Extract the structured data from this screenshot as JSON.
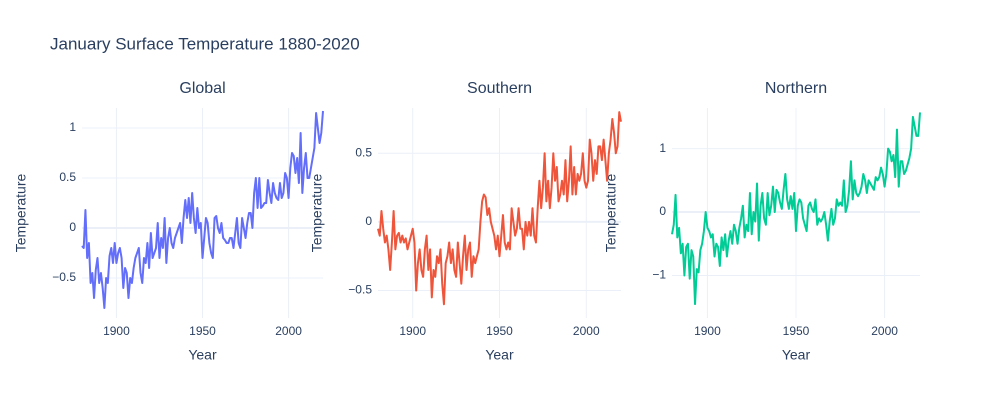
{
  "title": "January Surface Temperature 1880-2020",
  "chart_data": [
    {
      "type": "line",
      "title": "Global",
      "x_label": "Year",
      "y_label": "Temperature",
      "color": "#636efa",
      "x": [
        1880,
        1881,
        1882,
        1883,
        1884,
        1885,
        1886,
        1887,
        1888,
        1889,
        1890,
        1891,
        1892,
        1893,
        1894,
        1895,
        1896,
        1897,
        1898,
        1899,
        1900,
        1901,
        1902,
        1903,
        1904,
        1905,
        1906,
        1907,
        1908,
        1909,
        1910,
        1911,
        1912,
        1913,
        1914,
        1915,
        1916,
        1917,
        1918,
        1919,
        1920,
        1921,
        1922,
        1923,
        1924,
        1925,
        1926,
        1927,
        1928,
        1929,
        1930,
        1931,
        1932,
        1933,
        1934,
        1935,
        1936,
        1937,
        1938,
        1939,
        1940,
        1941,
        1942,
        1943,
        1944,
        1945,
        1946,
        1947,
        1948,
        1949,
        1950,
        1951,
        1952,
        1953,
        1954,
        1955,
        1956,
        1957,
        1958,
        1959,
        1960,
        1961,
        1962,
        1963,
        1964,
        1965,
        1966,
        1967,
        1968,
        1969,
        1970,
        1971,
        1972,
        1973,
        1974,
        1975,
        1976,
        1977,
        1978,
        1979,
        1980,
        1981,
        1982,
        1983,
        1984,
        1985,
        1986,
        1987,
        1988,
        1989,
        1990,
        1991,
        1992,
        1993,
        1994,
        1995,
        1996,
        1997,
        1998,
        1999,
        2000,
        2001,
        2002,
        2003,
        2004,
        2005,
        2006,
        2007,
        2008,
        2009,
        2010,
        2011,
        2012,
        2013,
        2014,
        2015,
        2016,
        2017,
        2018,
        2019,
        2020
      ],
      "values": [
        -0.18,
        -0.2,
        0.18,
        -0.3,
        -0.15,
        -0.55,
        -0.45,
        -0.7,
        -0.42,
        -0.3,
        -0.55,
        -0.45,
        -0.6,
        -0.8,
        -0.5,
        -0.55,
        -0.28,
        -0.2,
        -0.35,
        -0.15,
        -0.35,
        -0.25,
        -0.2,
        -0.3,
        -0.6,
        -0.4,
        -0.45,
        -0.7,
        -0.5,
        -0.55,
        -0.4,
        -0.3,
        -0.25,
        -0.2,
        -0.45,
        -0.55,
        -0.3,
        -0.35,
        -0.15,
        -0.4,
        -0.05,
        -0.3,
        -0.25,
        -0.2,
        0.05,
        -0.3,
        -0.1,
        -0.2,
        0.1,
        -0.35,
        -0.1,
        0.0,
        -0.15,
        -0.2,
        -0.1,
        -0.05,
        0.0,
        0.05,
        -0.15,
        0.1,
        0.28,
        0.1,
        0.3,
        0.05,
        0.35,
        0.1,
        -0.05,
        0.2,
        0.0,
        0.05,
        -0.3,
        -0.1,
        0.1,
        0.05,
        -0.15,
        -0.25,
        -0.3,
        0.1,
        0.12,
        0.0,
        -0.05,
        0.05,
        -0.1,
        -0.12,
        -0.15,
        -0.15,
        -0.1,
        -0.1,
        -0.2,
        -0.05,
        0.1,
        -0.15,
        -0.2,
        0.1,
        0.0,
        -0.1,
        0.05,
        0.15,
        0.15,
        0.0,
        0.35,
        0.5,
        0.2,
        0.5,
        0.2,
        0.22,
        0.25,
        0.25,
        0.48,
        0.35,
        0.25,
        0.45,
        0.35,
        0.3,
        0.28,
        0.45,
        0.3,
        0.35,
        0.55,
        0.5,
        0.3,
        0.6,
        0.75,
        0.72,
        0.55,
        0.7,
        0.45,
        0.95,
        0.35,
        0.6,
        0.75,
        0.5,
        0.5,
        0.6,
        0.7,
        0.8,
        1.15,
        1.0,
        0.85,
        0.95,
        1.17
      ],
      "xlim": [
        1880,
        2020
      ],
      "xticks": [
        1900,
        1950,
        2000
      ],
      "ylim": [
        -0.9,
        1.2
      ],
      "yticks": [
        {
          "value": -0.5,
          "label": "−0.5"
        },
        0,
        0.5,
        1
      ],
      "grid": true
    },
    {
      "type": "line",
      "title": "Southern",
      "x_label": "Year",
      "y_label": "Temperature",
      "color": "#ef553b",
      "x": [
        1880,
        1881,
        1882,
        1883,
        1884,
        1885,
        1886,
        1887,
        1888,
        1889,
        1890,
        1891,
        1892,
        1893,
        1894,
        1895,
        1896,
        1897,
        1898,
        1899,
        1900,
        1901,
        1902,
        1903,
        1904,
        1905,
        1906,
        1907,
        1908,
        1909,
        1910,
        1911,
        1912,
        1913,
        1914,
        1915,
        1916,
        1917,
        1918,
        1919,
        1920,
        1921,
        1922,
        1923,
        1924,
        1925,
        1926,
        1927,
        1928,
        1929,
        1930,
        1931,
        1932,
        1933,
        1934,
        1935,
        1936,
        1937,
        1938,
        1939,
        1940,
        1941,
        1942,
        1943,
        1944,
        1945,
        1946,
        1947,
        1948,
        1949,
        1950,
        1951,
        1952,
        1953,
        1954,
        1955,
        1956,
        1957,
        1958,
        1959,
        1960,
        1961,
        1962,
        1963,
        1964,
        1965,
        1966,
        1967,
        1968,
        1969,
        1970,
        1971,
        1972,
        1973,
        1974,
        1975,
        1976,
        1977,
        1978,
        1979,
        1980,
        1981,
        1982,
        1983,
        1984,
        1985,
        1986,
        1987,
        1988,
        1989,
        1990,
        1991,
        1992,
        1993,
        1994,
        1995,
        1996,
        1997,
        1998,
        1999,
        2000,
        2001,
        2002,
        2003,
        2004,
        2005,
        2006,
        2007,
        2008,
        2009,
        2010,
        2011,
        2012,
        2013,
        2014,
        2015,
        2016,
        2017,
        2018,
        2019,
        2020
      ],
      "values": [
        -0.05,
        -0.1,
        0.08,
        -0.05,
        -0.15,
        -0.1,
        -0.2,
        -0.35,
        -0.15,
        0.08,
        -0.2,
        -0.1,
        -0.08,
        -0.15,
        -0.1,
        -0.15,
        -0.12,
        -0.2,
        -0.15,
        -0.1,
        -0.05,
        -0.15,
        -0.5,
        -0.3,
        -0.2,
        -0.35,
        -0.4,
        -0.2,
        -0.1,
        -0.35,
        -0.2,
        -0.55,
        -0.35,
        -0.4,
        -0.25,
        -0.3,
        -0.2,
        -0.45,
        -0.6,
        -0.3,
        -0.25,
        -0.15,
        -0.3,
        -0.2,
        -0.35,
        -0.4,
        -0.15,
        -0.3,
        -0.45,
        -0.25,
        -0.1,
        -0.35,
        -0.2,
        -0.15,
        -0.4,
        -0.25,
        -0.3,
        -0.25,
        -0.2,
        0.0,
        0.15,
        0.2,
        0.18,
        0.05,
        0.1,
        0.0,
        -0.05,
        -0.1,
        -0.2,
        -0.1,
        -0.25,
        -0.1,
        0.05,
        -0.15,
        -0.2,
        -0.15,
        -0.2,
        0.1,
        0.0,
        -0.1,
        -0.05,
        0.1,
        -0.05,
        -0.05,
        -0.2,
        0.0,
        -0.1,
        0.0,
        -0.1,
        0.1,
        -0.1,
        -0.15,
        0.1,
        0.3,
        0.1,
        0.25,
        0.5,
        0.15,
        0.3,
        0.1,
        0.25,
        0.5,
        0.3,
        0.4,
        0.15,
        0.2,
        0.3,
        0.2,
        0.45,
        0.15,
        0.3,
        0.55,
        0.2,
        0.4,
        0.2,
        0.35,
        0.3,
        0.35,
        0.5,
        0.3,
        0.25,
        0.3,
        0.6,
        0.5,
        0.3,
        0.45,
        0.35,
        0.55,
        0.55,
        0.45,
        0.6,
        0.45,
        0.3,
        0.5,
        0.6,
        0.75,
        0.65,
        0.5,
        0.55,
        0.8,
        0.73
      ],
      "xlim": [
        1880,
        2020
      ],
      "xticks": [
        1900,
        1950,
        2000
      ],
      "ylim": [
        -0.7,
        0.83
      ],
      "yticks": [
        {
          "value": -0.5,
          "label": "−0.5"
        },
        0,
        0.5
      ],
      "grid": true
    },
    {
      "type": "line",
      "title": "Northern",
      "x_label": "Year",
      "y_label": "Temperature",
      "color": "#00cc96",
      "x": [
        1880,
        1881,
        1882,
        1883,
        1884,
        1885,
        1886,
        1887,
        1888,
        1889,
        1890,
        1891,
        1892,
        1893,
        1894,
        1895,
        1896,
        1897,
        1898,
        1899,
        1900,
        1901,
        1902,
        1903,
        1904,
        1905,
        1906,
        1907,
        1908,
        1909,
        1910,
        1911,
        1912,
        1913,
        1914,
        1915,
        1916,
        1917,
        1918,
        1919,
        1920,
        1921,
        1922,
        1923,
        1924,
        1925,
        1926,
        1927,
        1928,
        1929,
        1930,
        1931,
        1932,
        1933,
        1934,
        1935,
        1936,
        1937,
        1938,
        1939,
        1940,
        1941,
        1942,
        1943,
        1944,
        1945,
        1946,
        1947,
        1948,
        1949,
        1950,
        1951,
        1952,
        1953,
        1954,
        1955,
        1956,
        1957,
        1958,
        1959,
        1960,
        1961,
        1962,
        1963,
        1964,
        1965,
        1966,
        1967,
        1968,
        1969,
        1970,
        1971,
        1972,
        1973,
        1974,
        1975,
        1976,
        1977,
        1978,
        1979,
        1980,
        1981,
        1982,
        1983,
        1984,
        1985,
        1986,
        1987,
        1988,
        1989,
        1990,
        1991,
        1992,
        1993,
        1994,
        1995,
        1996,
        1997,
        1998,
        1999,
        2000,
        2001,
        2002,
        2003,
        2004,
        2005,
        2006,
        2007,
        2008,
        2009,
        2010,
        2011,
        2012,
        2013,
        2014,
        2015,
        2016,
        2017,
        2018,
        2019,
        2020
      ],
      "values": [
        -0.35,
        -0.2,
        0.27,
        -0.4,
        -0.25,
        -0.65,
        -0.5,
        -1.0,
        -0.55,
        -0.5,
        -1.05,
        -0.6,
        -0.7,
        -1.45,
        -0.9,
        -0.95,
        -0.6,
        -0.5,
        -0.3,
        0.0,
        -0.25,
        -0.3,
        -0.4,
        -0.35,
        -0.7,
        -0.5,
        -0.55,
        -0.85,
        -0.4,
        -0.6,
        -0.35,
        -0.7,
        -0.45,
        -0.3,
        -0.5,
        -0.2,
        -0.3,
        -0.5,
        -0.25,
        -0.1,
        0.1,
        -0.4,
        -0.2,
        -0.3,
        0.3,
        -0.35,
        0.0,
        -0.15,
        0.45,
        -0.45,
        0.1,
        0.3,
        -0.1,
        -0.2,
        0.3,
        -0.05,
        0.1,
        0.4,
        0.0,
        0.35,
        0.3,
        0.15,
        0.05,
        0.35,
        0.6,
        0.2,
        0.05,
        0.25,
        0.05,
        0.3,
        -0.3,
        0.1,
        0.2,
        0.15,
        -0.1,
        -0.2,
        -0.3,
        0.1,
        0.15,
        0.05,
        0.0,
        0.2,
        -0.2,
        -0.1,
        -0.15,
        -0.1,
        0.0,
        -0.2,
        -0.45,
        -0.15,
        0.05,
        -0.2,
        -0.1,
        0.2,
        0.1,
        0.15,
        0.1,
        0.5,
        0.0,
        0.1,
        0.35,
        0.8,
        0.2,
        0.5,
        0.3,
        0.25,
        0.3,
        0.4,
        0.6,
        0.5,
        0.3,
        0.5,
        0.45,
        0.4,
        0.35,
        0.55,
        0.5,
        0.55,
        0.7,
        0.6,
        0.4,
        0.6,
        1.0,
        0.95,
        0.8,
        0.9,
        0.55,
        1.3,
        0.4,
        0.8,
        0.8,
        0.6,
        0.65,
        0.75,
        0.85,
        1.0,
        1.5,
        1.35,
        1.2,
        1.2,
        1.57
      ],
      "xlim": [
        1880,
        2020
      ],
      "xticks": [
        1900,
        1950,
        2000
      ],
      "ylim": [
        -1.67,
        1.64
      ],
      "yticks": [
        {
          "value": -1,
          "label": "−1"
        },
        0,
        1
      ],
      "grid": true
    }
  ]
}
